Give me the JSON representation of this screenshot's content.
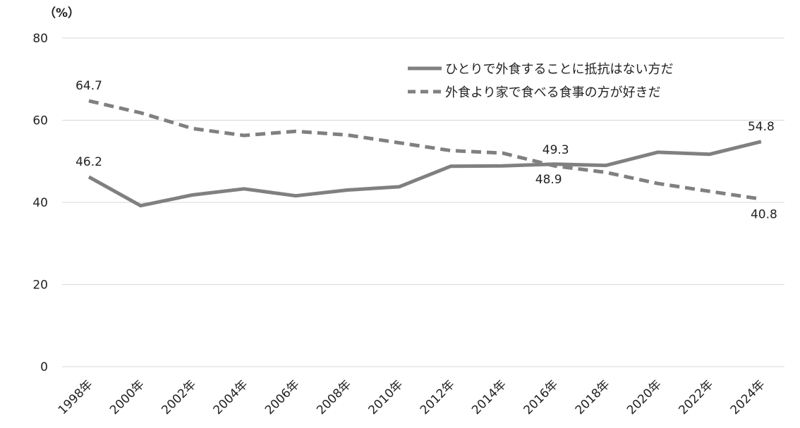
{
  "chart_data": {
    "type": "line",
    "unit_label": "（%）",
    "categories": [
      "1998年",
      "2000年",
      "2002年",
      "2004年",
      "2006年",
      "2008年",
      "2010年",
      "2012年",
      "2014年",
      "2016年",
      "2018年",
      "2020年",
      "2022年",
      "2024年"
    ],
    "ylim": [
      0,
      80
    ],
    "yticks": [
      0,
      20,
      40,
      60,
      80
    ],
    "grid": true,
    "legend_position": "top-right",
    "series": [
      {
        "name": "ひとりで外食することに抵抗はない方だ",
        "style": "solid",
        "color": "#808080",
        "values": [
          46.2,
          39.2,
          41.8,
          43.3,
          41.6,
          43.0,
          43.8,
          48.8,
          48.9,
          49.3,
          49.0,
          52.2,
          51.7,
          54.8
        ]
      },
      {
        "name": "外食より家で食べる食事の方が好きだ",
        "style": "dashed",
        "color": "#808080",
        "values": [
          64.7,
          61.8,
          58.0,
          56.3,
          57.3,
          56.4,
          54.5,
          52.6,
          52.0,
          48.9,
          47.3,
          44.6,
          42.7,
          40.8
        ]
      }
    ],
    "data_labels": [
      {
        "series": 0,
        "index": 0,
        "text": "46.2"
      },
      {
        "series": 0,
        "index": 9,
        "text": "49.3"
      },
      {
        "series": 0,
        "index": 13,
        "text": "54.8"
      },
      {
        "series": 1,
        "index": 0,
        "text": "64.7"
      },
      {
        "series": 1,
        "index": 9,
        "text": "48.9"
      },
      {
        "series": 1,
        "index": 13,
        "text": "40.8"
      }
    ]
  }
}
